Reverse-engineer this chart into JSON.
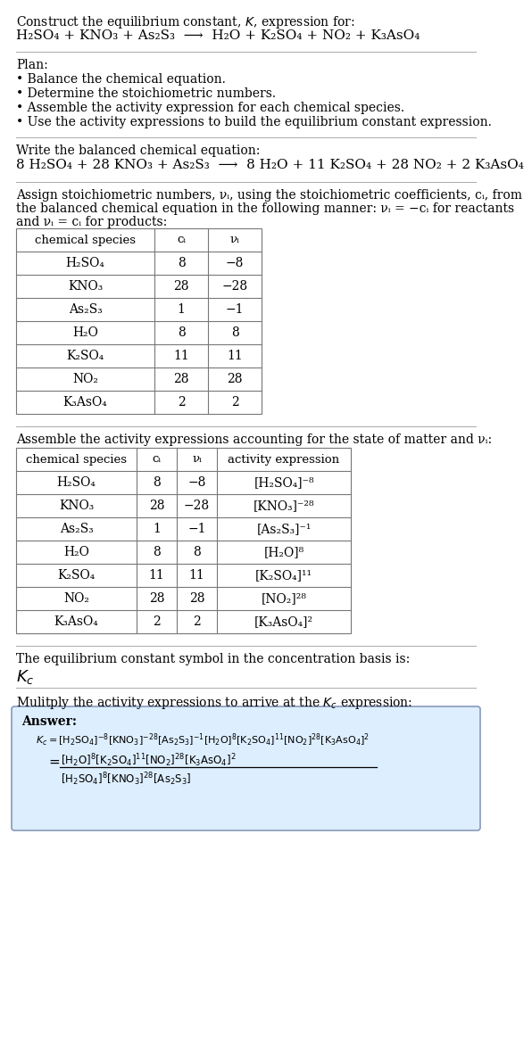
{
  "title_line1": "Construct the equilibrium constant, $K$, expression for:",
  "title_line2_plain": "H₂SO₄ + KNO₃ + As₂S₃  ⟶  H₂O + K₂SO₄ + NO₂ + K₃AsO₄",
  "plan_header": "Plan:",
  "plan_items": [
    "• Balance the chemical equation.",
    "• Determine the stoichiometric numbers.",
    "• Assemble the activity expression for each chemical species.",
    "• Use the activity expressions to build the equilibrium constant expression."
  ],
  "balanced_header": "Write the balanced chemical equation:",
  "balanced_eq_plain": "8 H₂SO₄ + 28 KNO₃ + As₂S₃  ⟶  8 H₂O + 11 K₂SO₄ + 28 NO₂ + 2 K₃AsO₄",
  "stoich_header": "Assign stoichiometric numbers, νᵢ, using the stoichiometric coefficients, cᵢ, from",
  "stoich_header2": "the balanced chemical equation in the following manner: νᵢ = −cᵢ for reactants",
  "stoich_header3": "and νᵢ = cᵢ for products:",
  "table1_headers": [
    "chemical species",
    "cᵢ",
    "νᵢ"
  ],
  "table1_data": [
    [
      "H₂SO₄",
      "8",
      "−8"
    ],
    [
      "KNO₃",
      "28",
      "−28"
    ],
    [
      "As₂S₃",
      "1",
      "−1"
    ],
    [
      "H₂O",
      "8",
      "8"
    ],
    [
      "K₂SO₄",
      "11",
      "11"
    ],
    [
      "NO₂",
      "28",
      "28"
    ],
    [
      "K₃AsO₄",
      "2",
      "2"
    ]
  ],
  "activity_header": "Assemble the activity expressions accounting for the state of matter and νᵢ:",
  "table2_headers": [
    "chemical species",
    "cᵢ",
    "νᵢ",
    "activity expression"
  ],
  "table2_data": [
    [
      "H₂SO₄",
      "8",
      "−8",
      "[H₂SO₄]⁻⁸"
    ],
    [
      "KNO₃",
      "28",
      "−28",
      "[KNO₃]⁻²⁸"
    ],
    [
      "As₂S₃",
      "1",
      "−1",
      "[As₂S₃]⁻¹"
    ],
    [
      "H₂O",
      "8",
      "8",
      "[H₂O]⁸"
    ],
    [
      "K₂SO₄",
      "11",
      "11",
      "[K₂SO₄]¹¹"
    ],
    [
      "NO₂",
      "28",
      "28",
      "[NO₂]²⁸"
    ],
    [
      "K₃AsO₄",
      "2",
      "2",
      "[K₃AsO₄]²"
    ]
  ],
  "kc_header": "The equilibrium constant symbol in the concentration basis is:",
  "kc_symbol": "K_c",
  "multiply_header": "Mulitply the activity expressions to arrive at the K_c expression:",
  "answer_label": "Answer:",
  "bg_color": "#ffffff",
  "answer_box_color": "#ddeeff",
  "answer_box_border": "#8899bb",
  "table_border_color": "#777777",
  "separator_color": "#aaaaaa"
}
